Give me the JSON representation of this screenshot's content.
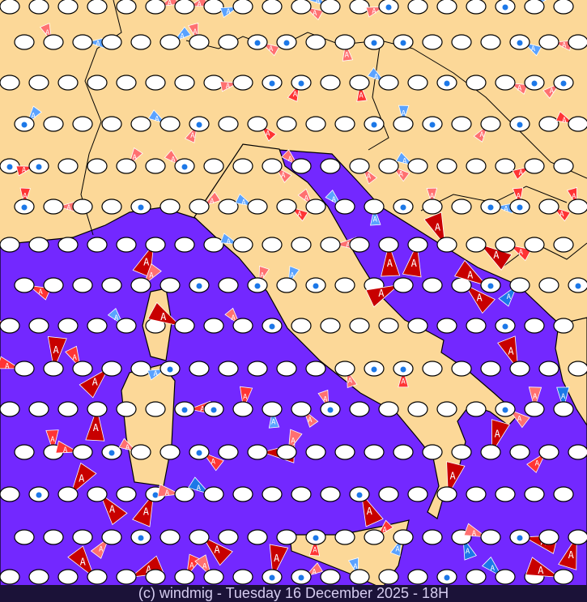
{
  "caption": "(c) windmig - Tuesday 16 December 2025 - 18H",
  "colors": {
    "land": "#fcd898",
    "sea": "#7328ff",
    "border": "#000000",
    "station": "#ffffff",
    "wind_strong": "#c80000",
    "wind_moderate": "#ff3434",
    "wind_light": "#ff7070",
    "wind_offshore_light": "#5aa2ff",
    "wind_offshore": "#1c78e8",
    "caption_bg": "#1b1238",
    "caption_text": "#d6cdf0"
  },
  "marker_label": "A",
  "icons": [
    "station-oval-icon",
    "wind-triangle-icon",
    "rain-drop-icon",
    "fog-icon"
  ]
}
